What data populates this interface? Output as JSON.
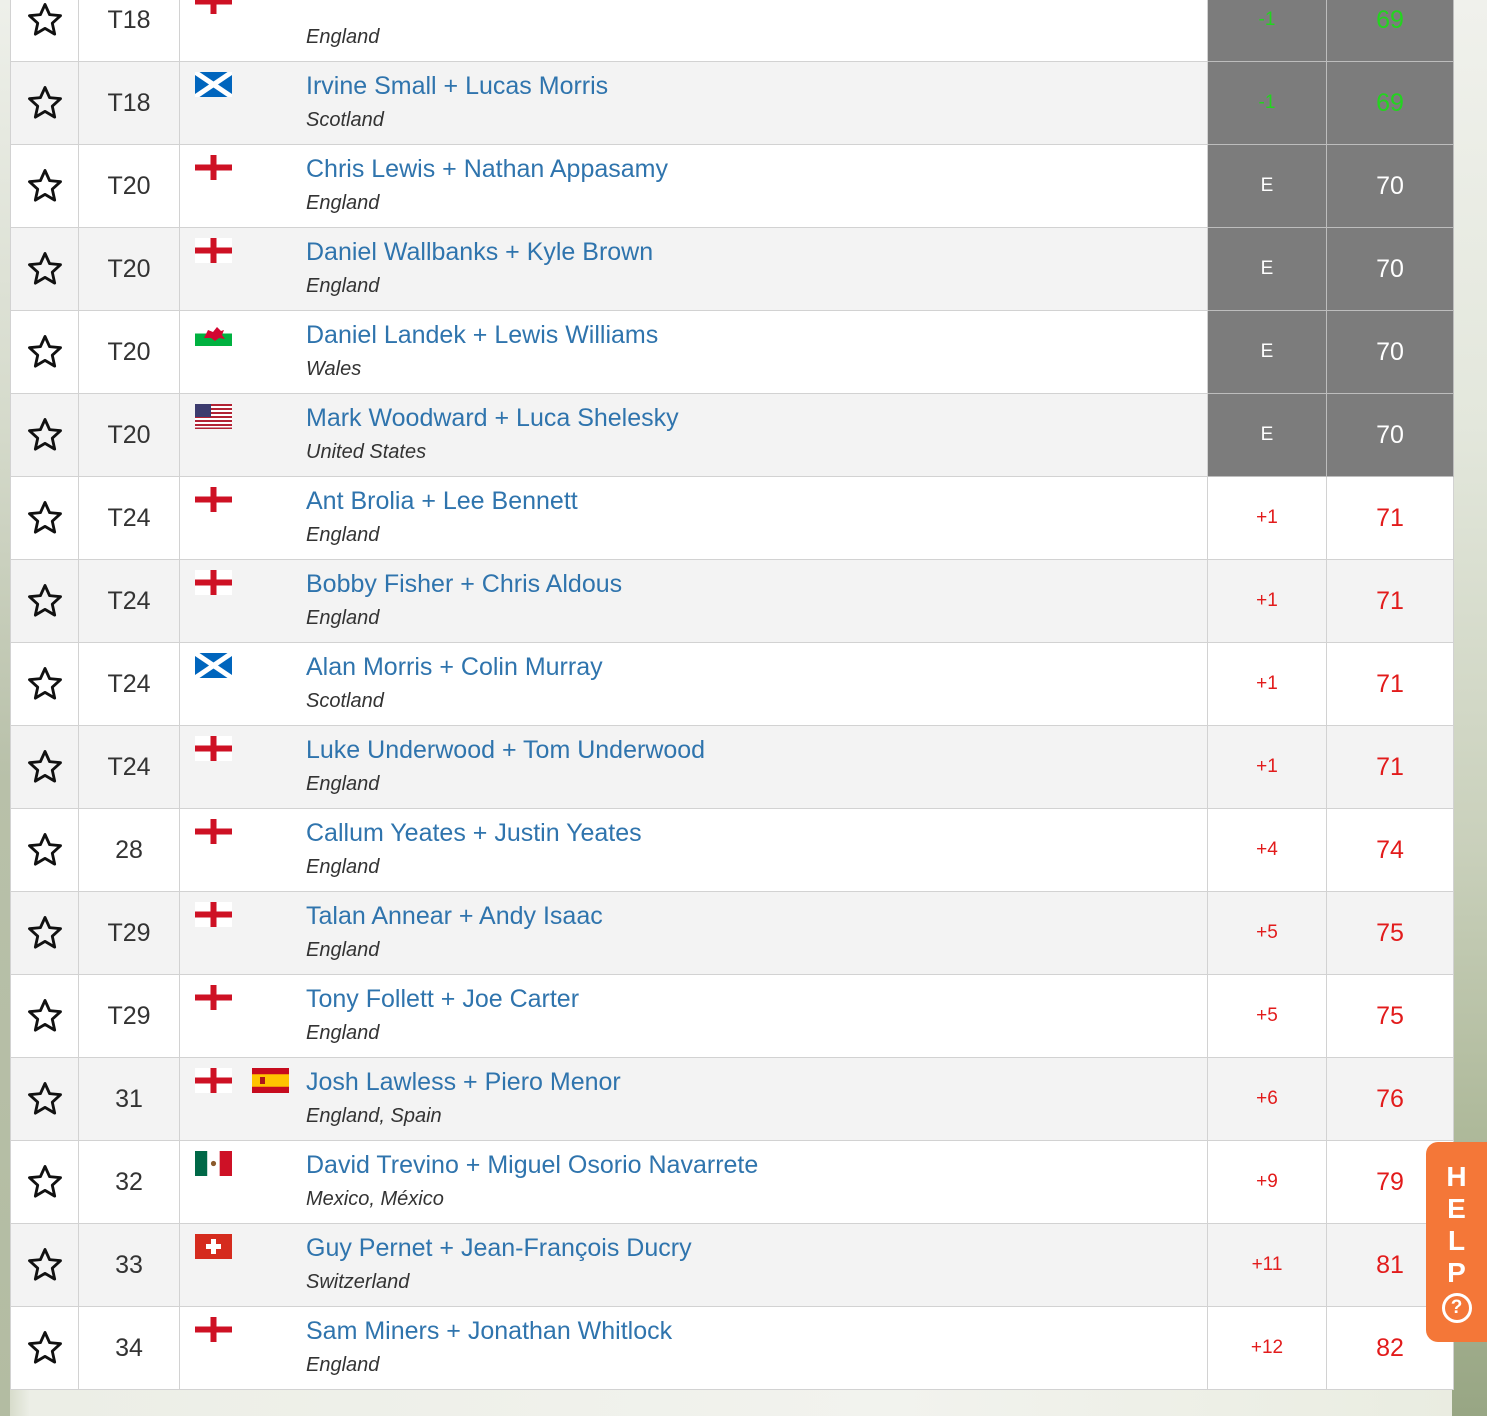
{
  "leaderboard": {
    "rows": [
      {
        "pos": "T18",
        "flags": [
          "eng"
        ],
        "names": "",
        "country": "England",
        "to_par": "-1",
        "total": "69",
        "style": "under"
      },
      {
        "pos": "T18",
        "flags": [
          "sco"
        ],
        "names": "Irvine Small + Lucas Morris",
        "country": "Scotland",
        "to_par": "-1",
        "total": "69",
        "style": "under"
      },
      {
        "pos": "T20",
        "flags": [
          "eng"
        ],
        "names": "Chris Lewis + Nathan Appasamy",
        "country": "England",
        "to_par": "E",
        "total": "70",
        "style": "even"
      },
      {
        "pos": "T20",
        "flags": [
          "eng"
        ],
        "names": "Daniel Wallbanks + Kyle Brown",
        "country": "England",
        "to_par": "E",
        "total": "70",
        "style": "even"
      },
      {
        "pos": "T20",
        "flags": [
          "wal"
        ],
        "names": "Daniel Landek + Lewis Williams",
        "country": "Wales",
        "to_par": "E",
        "total": "70",
        "style": "even"
      },
      {
        "pos": "T20",
        "flags": [
          "usa"
        ],
        "names": "Mark Woodward + Luca Shelesky",
        "country": "United States",
        "to_par": "E",
        "total": "70",
        "style": "even"
      },
      {
        "pos": "T24",
        "flags": [
          "eng"
        ],
        "names": "Ant Brolia + Lee Bennett",
        "country": "England",
        "to_par": "+1",
        "total": "71",
        "style": "over"
      },
      {
        "pos": "T24",
        "flags": [
          "eng"
        ],
        "names": "Bobby Fisher + Chris Aldous",
        "country": "England",
        "to_par": "+1",
        "total": "71",
        "style": "over"
      },
      {
        "pos": "T24",
        "flags": [
          "sco"
        ],
        "names": "Alan Morris + Colin Murray",
        "country": "Scotland",
        "to_par": "+1",
        "total": "71",
        "style": "over"
      },
      {
        "pos": "T24",
        "flags": [
          "eng"
        ],
        "names": "Luke Underwood + Tom Underwood",
        "country": "England",
        "to_par": "+1",
        "total": "71",
        "style": "over"
      },
      {
        "pos": "28",
        "flags": [
          "eng"
        ],
        "names": "Callum Yeates + Justin Yeates",
        "country": "England",
        "to_par": "+4",
        "total": "74",
        "style": "over"
      },
      {
        "pos": "T29",
        "flags": [
          "eng"
        ],
        "names": "Talan Annear + Andy Isaac",
        "country": "England",
        "to_par": "+5",
        "total": "75",
        "style": "over"
      },
      {
        "pos": "T29",
        "flags": [
          "eng"
        ],
        "names": "Tony Follett + Joe Carter",
        "country": "England",
        "to_par": "+5",
        "total": "75",
        "style": "over"
      },
      {
        "pos": "31",
        "flags": [
          "eng",
          "esp"
        ],
        "names": "Josh Lawless + Piero Menor",
        "country": "England, Spain",
        "to_par": "+6",
        "total": "76",
        "style": "over"
      },
      {
        "pos": "32",
        "flags": [
          "mex"
        ],
        "names": "David Trevino + Miguel Osorio Navarrete",
        "country": "Mexico, México",
        "to_par": "+9",
        "total": "79",
        "style": "over"
      },
      {
        "pos": "33",
        "flags": [
          "sui"
        ],
        "names": "Guy Pernet + Jean-François Ducry",
        "country": "Switzerland",
        "to_par": "+11",
        "total": "81",
        "style": "over"
      },
      {
        "pos": "34",
        "flags": [
          "eng"
        ],
        "names": "Sam Miners + Jonathan Whitlock",
        "country": "England",
        "to_par": "+12",
        "total": "82",
        "style": "over"
      }
    ]
  },
  "help": {
    "letters": [
      "H",
      "E",
      "L",
      "P"
    ],
    "icon": "question-circle-icon",
    "icon_text": "?"
  },
  "colors": {
    "name_link": "#2f74ad",
    "under_par": "#23d41f",
    "over_par": "#e21b1b",
    "dark_cell": "#7c7c7c",
    "help_tab": "#f47738"
  }
}
